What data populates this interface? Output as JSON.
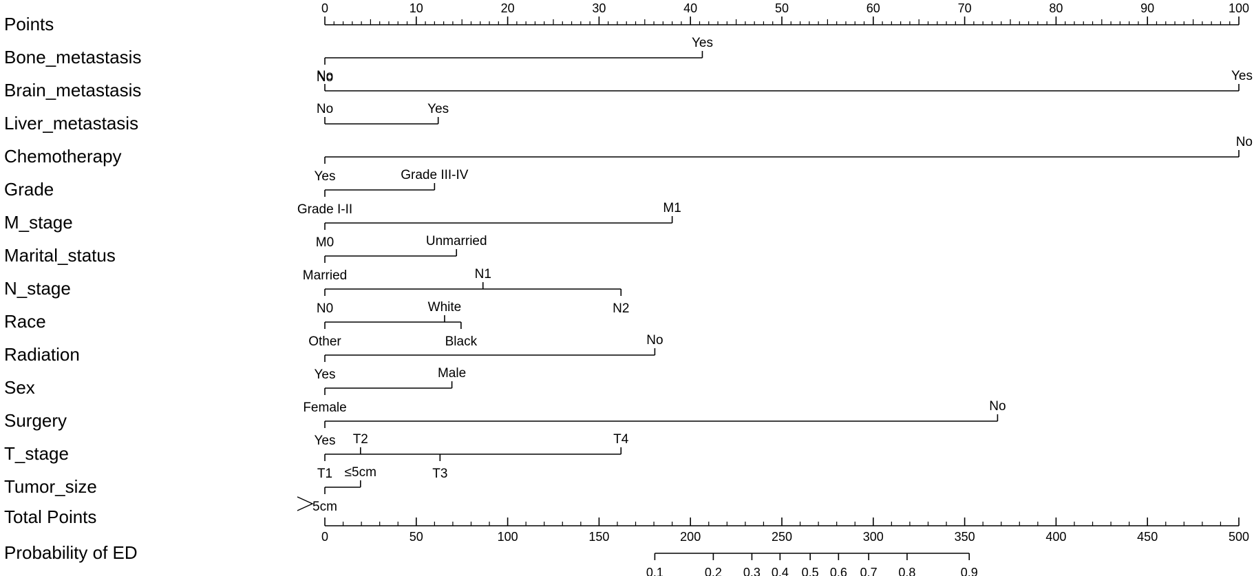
{
  "chart_data": {
    "type": "nomogram",
    "points_axis": {
      "label": "Points",
      "range": [
        0,
        100
      ],
      "major_ticks": [
        0,
        10,
        20,
        30,
        40,
        50,
        60,
        70,
        80,
        90,
        100
      ],
      "minor_step": 1
    },
    "variables": [
      {
        "name": "Bone_metastasis",
        "levels": [
          {
            "label": "No",
            "points": 0,
            "pos": "below"
          },
          {
            "label": "Yes",
            "points": 41.3,
            "pos": "above"
          }
        ]
      },
      {
        "name": "Brain_metastasis",
        "levels": [
          {
            "label": "No",
            "points": 0,
            "pos": "above"
          },
          {
            "label": "Yes",
            "points": 100,
            "pos": "above"
          }
        ]
      },
      {
        "name": "Liver_metastasis",
        "levels": [
          {
            "label": "No",
            "points": 0,
            "pos": "above"
          },
          {
            "label": "Yes",
            "points": 12.4,
            "pos": "above"
          }
        ]
      },
      {
        "name": "Chemotherapy",
        "levels": [
          {
            "label": "No",
            "points": 100,
            "pos": "above"
          },
          {
            "label": "Yes",
            "points": 0,
            "pos": "below"
          }
        ]
      },
      {
        "name": "Grade",
        "levels": [
          {
            "label": "Grade I-II",
            "points": 0,
            "pos": "below"
          },
          {
            "label": "Grade III-IV",
            "points": 12.0,
            "pos": "above"
          }
        ]
      },
      {
        "name": "M_stage",
        "levels": [
          {
            "label": "M0",
            "points": 0,
            "pos": "below"
          },
          {
            "label": "M1",
            "points": 38.0,
            "pos": "above"
          }
        ]
      },
      {
        "name": "Marital_status",
        "levels": [
          {
            "label": "Married",
            "points": 0,
            "pos": "below"
          },
          {
            "label": "Unmarried",
            "points": 14.4,
            "pos": "above"
          }
        ]
      },
      {
        "name": "N_stage",
        "levels": [
          {
            "label": "N0",
            "points": 0,
            "pos": "below"
          },
          {
            "label": "N1",
            "points": 17.3,
            "pos": "above"
          },
          {
            "label": "N2",
            "points": 32.4,
            "pos": "below"
          }
        ]
      },
      {
        "name": "Race",
        "levels": [
          {
            "label": "Other",
            "points": 0,
            "pos": "below"
          },
          {
            "label": "White",
            "points": 13.1,
            "pos": "above"
          },
          {
            "label": "Black",
            "points": 14.9,
            "pos": "below"
          }
        ]
      },
      {
        "name": "Radiation",
        "levels": [
          {
            "label": "No",
            "points": 36.1,
            "pos": "above"
          },
          {
            "label": "Yes",
            "points": 0,
            "pos": "below"
          }
        ]
      },
      {
        "name": "Sex",
        "levels": [
          {
            "label": "Female",
            "points": 0,
            "pos": "below"
          },
          {
            "label": "Male",
            "points": 13.9,
            "pos": "above"
          }
        ]
      },
      {
        "name": "Surgery",
        "levels": [
          {
            "label": "No",
            "points": 73.6,
            "pos": "above"
          },
          {
            "label": "Yes",
            "points": 0,
            "pos": "below"
          }
        ]
      },
      {
        "name": "T_stage",
        "levels": [
          {
            "label": "T1",
            "points": 0,
            "pos": "below"
          },
          {
            "label": "T2",
            "points": 3.9,
            "pos": "above"
          },
          {
            "label": "T3",
            "points": 12.6,
            "pos": "below"
          },
          {
            "label": "T4",
            "points": 32.4,
            "pos": "above"
          }
        ]
      },
      {
        "name": "Tumor_size",
        "levels": [
          {
            "label": "≤5cm",
            "points": 3.9,
            "pos": "above"
          },
          {
            "label": "5cm",
            "points": 0,
            "pos": "below"
          }
        ]
      }
    ],
    "total_points_axis": {
      "label": "Total Points",
      "range": [
        0,
        500
      ],
      "major_ticks": [
        0,
        50,
        100,
        150,
        200,
        250,
        300,
        350,
        400,
        450,
        500
      ],
      "minor_step": 10
    },
    "probability_axis": {
      "label": "Probability of ED",
      "ticks": [
        {
          "label": "0.1",
          "total_points": 180.5
        },
        {
          "label": "0.2",
          "total_points": 212.5
        },
        {
          "label": "0.3",
          "total_points": 233.6
        },
        {
          "label": "0.4",
          "total_points": 249.0
        },
        {
          "label": "0.5",
          "total_points": 265.5
        },
        {
          "label": "0.6",
          "total_points": 281.0
        },
        {
          "label": "0.7",
          "total_points": 297.5
        },
        {
          "label": "0.8",
          "total_points": 318.5
        },
        {
          "label": "0.9",
          "total_points": 352.5
        }
      ]
    }
  }
}
